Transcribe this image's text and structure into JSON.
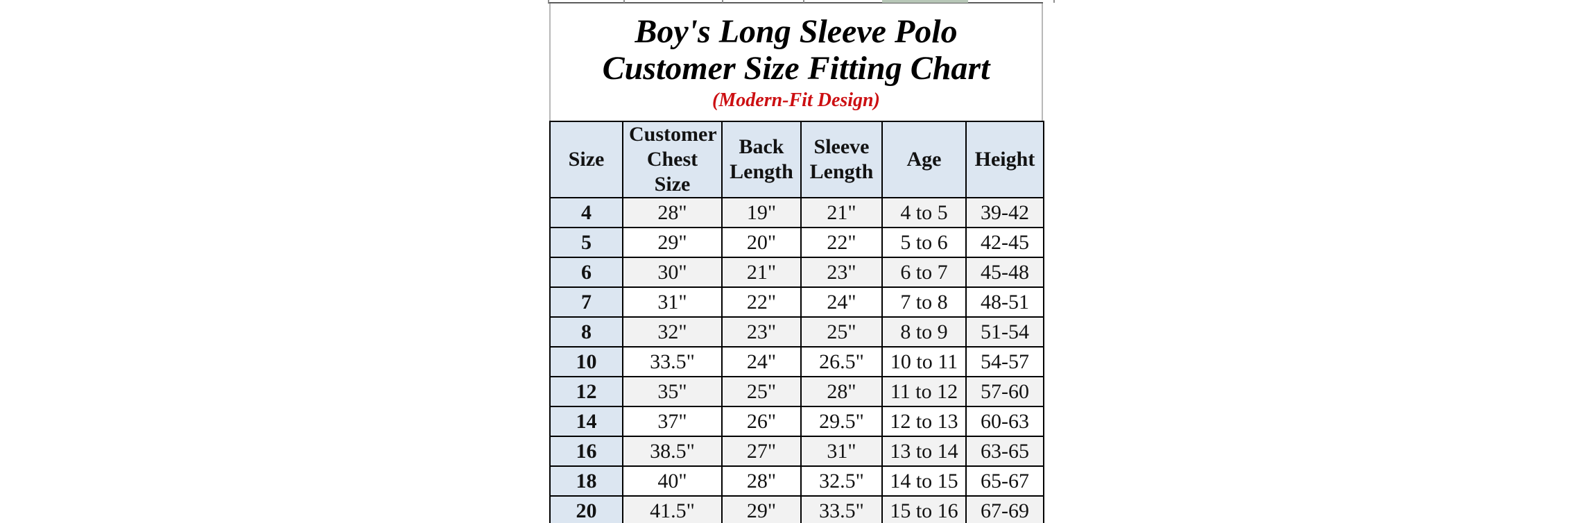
{
  "title_block": {
    "line1": "Boy's Long Sleeve Polo",
    "line2": "Customer Size Fitting Chart",
    "subtitle": "(Modern-Fit Design)"
  },
  "chart_data": {
    "type": "table",
    "title": "Boy's Long Sleeve Polo Customer Size Fitting Chart (Modern-Fit Design)",
    "columns": [
      "Size",
      "Customer Chest Size",
      "Back Length",
      "Sleeve Length",
      "Age",
      "Height"
    ],
    "rows": [
      [
        "4",
        "28\"",
        "19\"",
        "21\"",
        "4 to 5",
        "39-42"
      ],
      [
        "5",
        "29\"",
        "20\"",
        "22\"",
        "5 to 6",
        "42-45"
      ],
      [
        "6",
        "30\"",
        "21\"",
        "23\"",
        "6 to 7",
        "45-48"
      ],
      [
        "7",
        "31\"",
        "22\"",
        "24\"",
        "7 to 8",
        "48-51"
      ],
      [
        "8",
        "32\"",
        "23\"",
        "25\"",
        "8 to 9",
        "51-54"
      ],
      [
        "10",
        "33.5\"",
        "24\"",
        "26.5\"",
        "10 to 11",
        "54-57"
      ],
      [
        "12",
        "35\"",
        "25\"",
        "28\"",
        "11 to 12",
        "57-60"
      ],
      [
        "14",
        "37\"",
        "26\"",
        "29.5\"",
        "12 to 13",
        "60-63"
      ],
      [
        "16",
        "38.5\"",
        "27\"",
        "31\"",
        "13 to 14",
        "63-65"
      ],
      [
        "18",
        "40\"",
        "28\"",
        "32.5\"",
        "14 to 15",
        "65-67"
      ],
      [
        "20",
        "41.5\"",
        "29\"",
        "33.5\"",
        "15 to 16",
        "67-69"
      ]
    ],
    "layout_hints": {
      "header_two_line_wrap": [
        "Customer Chest Size",
        "Back Length",
        "Sleeve Length"
      ],
      "alternating_rows": "first data row shaded, alternating down",
      "size_column_shaded": true
    }
  },
  "colors": {
    "header_fill": "#dce6f1",
    "size_column_fill": "#dce6f1",
    "alt_row_fill": "#f2f2f2",
    "row_fill": "#ffffff",
    "border": "#000000",
    "title_text": "#000000",
    "subtitle_red": "#cc0f12",
    "top_partial_cell_green": "#b7c7b7"
  }
}
